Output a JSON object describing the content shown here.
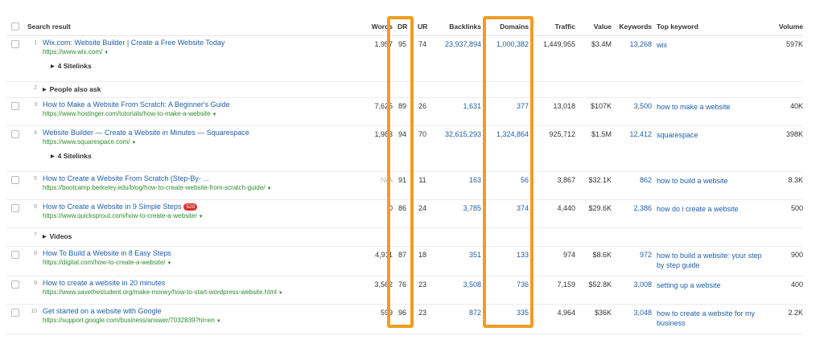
{
  "header": {
    "search_result": "Search result",
    "words": "Words",
    "dr": "DR",
    "ur": "UR",
    "backlinks": "Backlinks",
    "domains": "Domains",
    "traffic": "Traffic",
    "value": "Value",
    "keywords": "Keywords",
    "top_keyword": "Top keyword",
    "volume": "Volume"
  },
  "rows": [
    {
      "num": "1",
      "title": "Wix.com: Website Builder | Create a Free Website Today",
      "url": "https://www.wix.com/",
      "words": "1,957",
      "dr": "95",
      "ur": "74",
      "backlinks": "23,937,894",
      "domains": "1,000,382",
      "traffic": "1,449,955",
      "value": "$3.4M",
      "keywords": "13,268",
      "top_keyword": "wix",
      "volume": "597K",
      "sitelinks": "4 Sitelinks"
    },
    {
      "num": "2",
      "feature": "People also ask"
    },
    {
      "num": "3",
      "title": "How to Make a Website From Scratch: A Beginner's Guide",
      "url": "https://www.hostinger.com/tutorials/how-to-make-a-website",
      "words": "7,625",
      "dr": "89",
      "ur": "26",
      "backlinks": "1,631",
      "domains": "377",
      "traffic": "13,018",
      "value": "$107K",
      "keywords": "3,500",
      "top_keyword": "how to make a website",
      "volume": "40K"
    },
    {
      "num": "4",
      "title": "Website Builder — Create a Website in Minutes — Squarespace",
      "url": "https://www.squarespace.com/",
      "words": "1,983",
      "dr": "94",
      "ur": "70",
      "backlinks": "32,615,293",
      "domains": "1,324,864",
      "traffic": "925,712",
      "value": "$1.5M",
      "keywords": "12,412",
      "top_keyword": "squarespace",
      "volume": "398K",
      "sitelinks": "4 Sitelinks"
    },
    {
      "num": "5",
      "title": "How to Create a Website From Scratch (Step-By- ...",
      "url": "https://bootcamp.berkeley.edu/blog/how-to-create-website-from-scratch-guide/",
      "words": "N/A",
      "dr": "91",
      "ur": "11",
      "backlinks": "163",
      "domains": "56",
      "traffic": "3,867",
      "value": "$32.1K",
      "keywords": "862",
      "top_keyword": "how to build a website",
      "volume": "8.3K"
    },
    {
      "num": "6",
      "title": "How to Create a Website in 9 Simple Steps",
      "badge": "520",
      "url": "https://www.quicksprout.com/how-to-create-a-website/",
      "words": "0",
      "dr": "86",
      "ur": "24",
      "backlinks": "3,785",
      "domains": "374",
      "traffic": "4,440",
      "value": "$29.6K",
      "keywords": "2,386",
      "top_keyword": "how do i create a website",
      "volume": "500"
    },
    {
      "num": "7",
      "feature": "Videos"
    },
    {
      "num": "8",
      "title": "How To Build a Website in 8 Easy Steps",
      "url": "https://digital.com/how-to-create-a-website/",
      "words": "4,911",
      "dr": "87",
      "ur": "18",
      "backlinks": "351",
      "domains": "133",
      "traffic": "974",
      "value": "$8.6K",
      "keywords": "972",
      "top_keyword": "how to build a website: your step by step guide",
      "volume": "900"
    },
    {
      "num": "9",
      "title": "How to create a website in 20 minutes",
      "url": "https://www.savethestudent.org/make-money/how-to-start-wordpress-website.html",
      "words": "3,562",
      "dr": "76",
      "ur": "23",
      "backlinks": "3,508",
      "domains": "736",
      "traffic": "7,159",
      "value": "$52.8K",
      "keywords": "3,008",
      "top_keyword": "setting up a website",
      "volume": "400"
    },
    {
      "num": "10",
      "title": "Get started on a website with Google",
      "url": "https://support.google.com/business/answer/7032839?hl=en",
      "words": "599",
      "dr": "96",
      "ur": "23",
      "backlinks": "872",
      "domains": "335",
      "traffic": "4,964",
      "value": "$36K",
      "keywords": "3,048",
      "top_keyword": "how to create a website for my business",
      "volume": "2.2K"
    }
  ],
  "colors": {
    "highlight": "#f39c1f",
    "link": "#2060a8",
    "url": "#2e8b2e",
    "badge": "#d9302c"
  }
}
